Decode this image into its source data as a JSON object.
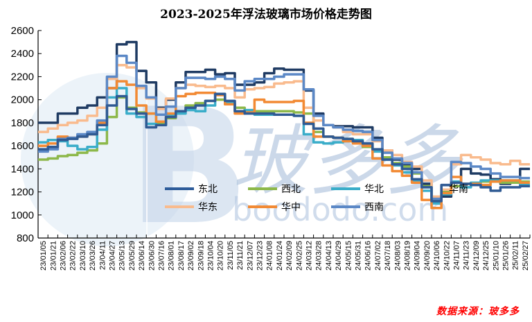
{
  "title": "2023-2025年浮法玻璃市场价格走势图",
  "source": "数据来源：玻多多",
  "watermark": {
    "text_cn": "玻多多",
    "text_en": "boododo.com",
    "letter": "B"
  },
  "chart_data": {
    "type": "line",
    "title": "2023-2025年浮法玻璃市场价格走势图",
    "xlabel": "",
    "ylabel": "",
    "ylim": [
      800,
      2600
    ],
    "yticks": [
      800,
      1000,
      1200,
      1400,
      1600,
      1800,
      2000,
      2200,
      2400,
      2600
    ],
    "grid": false,
    "legend_position": "inside-center-bottom",
    "categories": [
      "23/01/05",
      "23/01/21",
      "23/02/06",
      "23/02/22",
      "23/03/10",
      "23/03/26",
      "23/04/11",
      "23/04/27",
      "23/05/13",
      "23/05/29",
      "23/06/14",
      "23/06/30",
      "23/07/16",
      "23/08/01",
      "23/08/17",
      "23/09/02",
      "23/09/18",
      "23/10/04",
      "23/10/20",
      "23/11/05",
      "23/11/21",
      "23/12/07",
      "23/12/23",
      "24/01/08",
      "24/01/24",
      "24/02/09",
      "24/02/25",
      "24/03/12",
      "24/03/28",
      "24/04/13",
      "24/04/29",
      "24/05/15",
      "24/05/31",
      "24/06/16",
      "24/07/02",
      "24/07/18",
      "24/08/03",
      "24/08/19",
      "24/09/04",
      "24/09/20",
      "24/10/06",
      "24/10/22",
      "24/11/07",
      "24/11/23",
      "24/12/09",
      "24/12/25",
      "25/01/10",
      "25/01/26",
      "25/02/11",
      "25/02/27"
    ],
    "series": [
      {
        "name": "东北",
        "color": "#1F3B63",
        "values": [
          1800,
          1800,
          1880,
          1880,
          1930,
          1950,
          2020,
          2100,
          2480,
          2500,
          2250,
          2150,
          1930,
          2000,
          2150,
          2240,
          2240,
          2260,
          2220,
          2230,
          2130,
          2130,
          2150,
          2230,
          2270,
          2260,
          2260,
          2080,
          1880,
          1780,
          1770,
          1770,
          1760,
          1760,
          1670,
          1560,
          1480,
          1440,
          1400,
          1270,
          1160,
          1160,
          1280,
          1400,
          1360,
          1350,
          1310,
          1270,
          1290,
          1400
        ]
      },
      {
        "name": "西北",
        "color": "#8DB84A",
        "values": [
          1480,
          1490,
          1510,
          1520,
          1540,
          1560,
          1620,
          1850,
          2020,
          1930,
          1890,
          1880,
          1790,
          1840,
          1900,
          1950,
          1970,
          1990,
          2000,
          1960,
          1930,
          1900,
          1900,
          1900,
          1900,
          1900,
          1890,
          1880,
          1720,
          1680,
          1670,
          1660,
          1630,
          1590,
          1560,
          1500,
          1450,
          1420,
          1360,
          1250,
          1140,
          1200,
          1250,
          1270,
          1280,
          1290,
          1290,
          1280,
          1280,
          1290
        ]
      },
      {
        "name": "华北",
        "color": "#3AADC9",
        "values": [
          1630,
          1650,
          1640,
          1600,
          1570,
          1590,
          1740,
          2020,
          2100,
          1880,
          1850,
          1790,
          1780,
          1870,
          1880,
          1910,
          1900,
          1950,
          2050,
          1970,
          1900,
          1910,
          1870,
          1870,
          1870,
          1870,
          1860,
          1700,
          1630,
          1620,
          1630,
          1640,
          1650,
          1620,
          1550,
          1480,
          1430,
          1370,
          1290,
          1210,
          1100,
          1180,
          1290,
          1240,
          1280,
          1300,
          1300,
          1300,
          1300,
          1260
        ]
      },
      {
        "name": "华东",
        "color": "#F9BB8E",
        "values": [
          1720,
          1750,
          1780,
          1800,
          1820,
          1860,
          1930,
          2180,
          2300,
          2280,
          2100,
          2010,
          1920,
          2010,
          2100,
          2130,
          2120,
          2110,
          2120,
          2100,
          2020,
          2090,
          2100,
          2110,
          2140,
          2150,
          2160,
          1930,
          1820,
          1780,
          1760,
          1720,
          1700,
          1700,
          1640,
          1560,
          1520,
          1460,
          1420,
          1300,
          1160,
          1220,
          1440,
          1520,
          1500,
          1480,
          1450,
          1440,
          1470,
          1440
        ]
      },
      {
        "name": "华中",
        "color": "#F28A34",
        "values": [
          1600,
          1620,
          1680,
          1670,
          1680,
          1700,
          1800,
          2100,
          2160,
          2130,
          1950,
          1880,
          1810,
          1880,
          2030,
          2050,
          2060,
          2060,
          2040,
          1960,
          1880,
          1890,
          2000,
          1980,
          1980,
          1980,
          1990,
          1800,
          1680,
          1680,
          1670,
          1640,
          1620,
          1600,
          1490,
          1430,
          1380,
          1340,
          1280,
          1130,
          1060,
          1190,
          1330,
          1270,
          1270,
          1260,
          1290,
          1300,
          1300,
          1280
        ]
      },
      {
        "name": "西南",
        "color": "#5B88C6",
        "values": [
          1550,
          1570,
          1660,
          1670,
          1700,
          1720,
          1820,
          2200,
          2380,
          2320,
          2120,
          2020,
          1870,
          1940,
          2100,
          2190,
          2190,
          2180,
          2200,
          2180,
          2080,
          2160,
          2180,
          2180,
          2200,
          2220,
          2220,
          2090,
          1860,
          1780,
          1760,
          1740,
          1730,
          1720,
          1650,
          1540,
          1490,
          1450,
          1370,
          1240,
          1140,
          1260,
          1460,
          1450,
          1420,
          1400,
          1360,
          1330,
          1330,
          1320
        ]
      },
      {
        "name": "华南",
        "color": "#2F5A93",
        "values": [
          1570,
          1590,
          1650,
          1660,
          1680,
          1700,
          1780,
          1950,
          2030,
          1920,
          1880,
          1760,
          1780,
          1850,
          1900,
          1930,
          1950,
          1990,
          2050,
          1990,
          1900,
          1880,
          1880,
          1880,
          1870,
          1870,
          1860,
          1790,
          1750,
          1680,
          1670,
          1660,
          1640,
          1620,
          1570,
          1480,
          1440,
          1400,
          1310,
          1240,
          1120,
          1260,
          1280,
          1270,
          1260,
          1240,
          1210,
          1240,
          1240,
          1250
        ]
      }
    ]
  },
  "legend": [
    {
      "name": "东北",
      "color": "#2E5C9A"
    },
    {
      "name": "西北",
      "color": "#8DB84A"
    },
    {
      "name": "华北",
      "color": "#3AADC9"
    },
    {
      "name": "华东",
      "color": "#F9BB8E"
    },
    {
      "name": "华中",
      "color": "#F28A34"
    },
    {
      "name": "西南",
      "color": "#5B88C6"
    }
  ],
  "extra_label": "华南"
}
